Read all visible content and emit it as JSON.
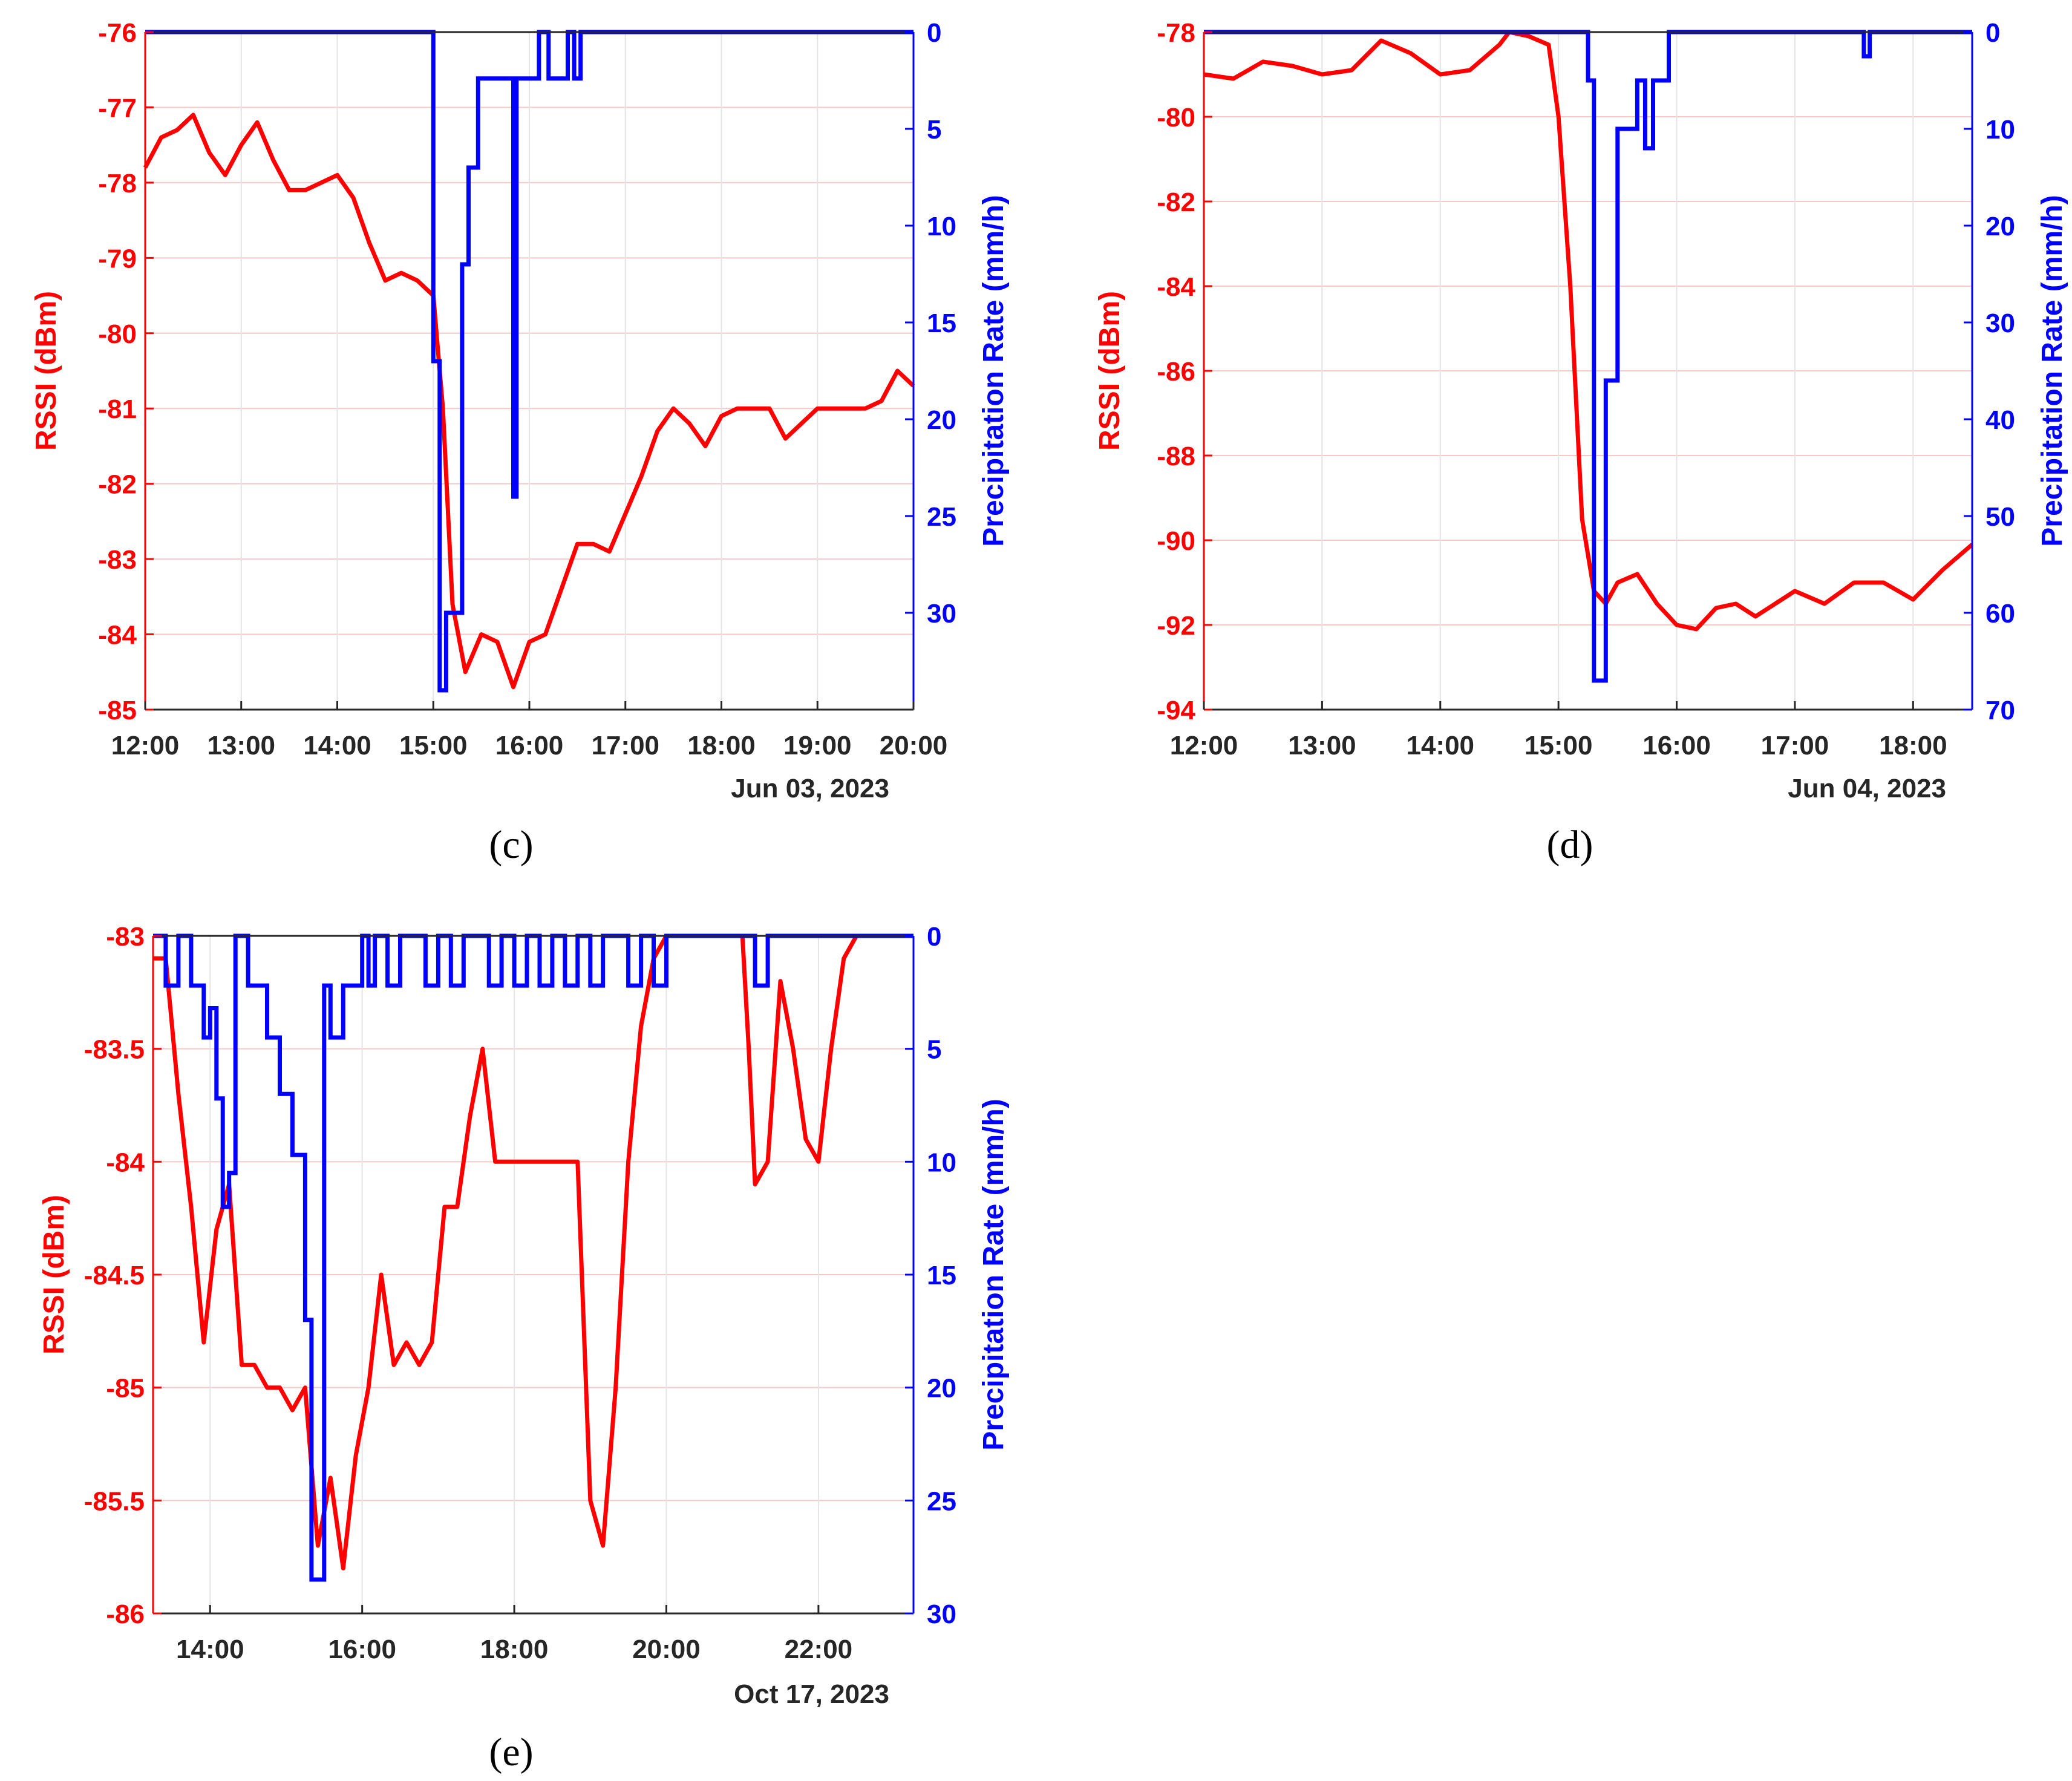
{
  "chart_data": [
    {
      "panel": "c",
      "caption": "(c)",
      "type": "line",
      "date_label": "Jun 03, 2023",
      "ylabel_left": "RSSI (dBm)",
      "ylabel_right": "Precipitation Rate (mm/h)",
      "xlim": [
        "12:00",
        "20:00"
      ],
      "xticks": [
        "12:00",
        "13:00",
        "14:00",
        "15:00",
        "16:00",
        "17:00",
        "18:00",
        "19:00",
        "20:00"
      ],
      "ylim_left": [
        -85,
        -76
      ],
      "yticks_left": [
        "-76",
        "-77",
        "-78",
        "-79",
        "-80",
        "-81",
        "-82",
        "-83",
        "-84",
        "-85"
      ],
      "ylim_right": [
        0,
        35
      ],
      "right_axis_reversed": true,
      "yticks_right": [
        "0",
        "5",
        "10",
        "15",
        "20",
        "25",
        "30"
      ],
      "grid": true,
      "series": [
        {
          "name": "RSSI",
          "axis": "left",
          "color": "#ff0000",
          "x": [
            "12:00",
            "12:10",
            "12:20",
            "12:30",
            "12:40",
            "12:50",
            "13:00",
            "13:10",
            "13:20",
            "13:30",
            "13:40",
            "13:50",
            "14:00",
            "14:10",
            "14:20",
            "14:30",
            "14:40",
            "14:50",
            "15:00",
            "15:06",
            "15:12",
            "15:20",
            "15:30",
            "15:40",
            "15:50",
            "16:00",
            "16:10",
            "16:20",
            "16:30",
            "16:40",
            "16:50",
            "17:00",
            "17:10",
            "17:20",
            "17:30",
            "17:40",
            "17:50",
            "18:00",
            "18:10",
            "18:20",
            "18:30",
            "18:40",
            "18:50",
            "19:00",
            "19:10",
            "19:20",
            "19:30",
            "19:40",
            "19:50",
            "20:00"
          ],
          "y": [
            -77.8,
            -77.4,
            -77.3,
            -77.1,
            -77.6,
            -77.9,
            -77.5,
            -77.2,
            -77.7,
            -78.1,
            -78.1,
            -78.0,
            -77.9,
            -78.2,
            -78.8,
            -79.3,
            -79.2,
            -79.3,
            -79.5,
            -81.0,
            -83.6,
            -84.5,
            -84.0,
            -84.1,
            -84.7,
            -84.1,
            -84.0,
            -83.4,
            -82.8,
            -82.8,
            -82.9,
            -82.4,
            -81.9,
            -81.3,
            -81.0,
            -81.2,
            -81.5,
            -81.1,
            -81.0,
            -81.0,
            -81.0,
            -81.4,
            -81.2,
            -81.0,
            -81.0,
            -81.0,
            -81.0,
            -80.9,
            -80.5,
            -80.7
          ]
        },
        {
          "name": "Precipitation Rate",
          "axis": "right",
          "color": "#0000ff",
          "step": true,
          "x": [
            "12:00",
            "15:00",
            "15:04",
            "15:06",
            "15:08",
            "15:14",
            "15:18",
            "15:22",
            "15:24",
            "15:28",
            "15:30",
            "15:35",
            "15:40",
            "15:48",
            "15:50",
            "15:52",
            "16:02",
            "16:06",
            "16:10",
            "16:12",
            "16:18",
            "16:24",
            "16:28",
            "16:32",
            "16:38",
            "16:40",
            "20:00"
          ],
          "y": [
            0,
            17,
            34,
            34,
            30,
            30,
            12,
            7,
            7,
            2.4,
            2.4,
            2.4,
            2.4,
            2.4,
            24,
            2.4,
            2.4,
            0,
            0,
            2.4,
            2.4,
            0,
            2.4,
            0,
            0,
            0,
            0
          ]
        }
      ]
    },
    {
      "panel": "d",
      "caption": "(d)",
      "type": "line",
      "date_label": "Jun 04, 2023",
      "ylabel_left": "RSSI (dBm)",
      "ylabel_right": "Precipitation Rate (mm/h)",
      "xlim": [
        "12:00",
        "18:30"
      ],
      "xticks": [
        "12:00",
        "13:00",
        "14:00",
        "15:00",
        "16:00",
        "17:00",
        "18:00"
      ],
      "ylim_left": [
        -94,
        -78
      ],
      "yticks_left": [
        "-78",
        "-80",
        "-82",
        "-84",
        "-86",
        "-88",
        "-90",
        "-92",
        "-94"
      ],
      "ylim_right": [
        0,
        70
      ],
      "right_axis_reversed": true,
      "yticks_right": [
        "0",
        "10",
        "20",
        "30",
        "40",
        "50",
        "60",
        "70"
      ],
      "grid": true,
      "series": [
        {
          "name": "RSSI",
          "axis": "left",
          "color": "#ff0000",
          "x": [
            "12:00",
            "12:15",
            "12:30",
            "12:45",
            "13:00",
            "13:15",
            "13:30",
            "13:45",
            "14:00",
            "14:15",
            "14:30",
            "14:35",
            "14:45",
            "14:55",
            "15:00",
            "15:06",
            "15:12",
            "15:18",
            "15:24",
            "15:30",
            "15:40",
            "15:50",
            "16:00",
            "16:10",
            "16:20",
            "16:30",
            "16:40",
            "16:50",
            "17:00",
            "17:15",
            "17:30",
            "17:45",
            "18:00",
            "18:15",
            "18:30"
          ],
          "y": [
            -79.0,
            -79.1,
            -78.7,
            -78.8,
            -79.0,
            -78.9,
            -78.2,
            -78.5,
            -79.0,
            -78.9,
            -78.3,
            -78.0,
            -78.1,
            -78.3,
            -80.0,
            -84.0,
            -89.5,
            -91.2,
            -91.5,
            -91.0,
            -90.8,
            -91.5,
            -92.0,
            -92.1,
            -91.6,
            -91.5,
            -91.8,
            -91.5,
            -91.2,
            -91.5,
            -91.0,
            -91.0,
            -91.4,
            -90.7,
            -90.1
          ]
        },
        {
          "name": "Precipitation Rate",
          "axis": "right",
          "color": "#0000ff",
          "step": true,
          "x": [
            "12:00",
            "15:15",
            "15:18",
            "15:24",
            "15:30",
            "15:36",
            "15:40",
            "15:44",
            "15:48",
            "15:52",
            "15:56",
            "16:00",
            "17:35",
            "17:38",
            "17:40",
            "18:30"
          ],
          "y": [
            0,
            5,
            67,
            36,
            10,
            10,
            5,
            12,
            5,
            5,
            0,
            0,
            2.5,
            0,
            0,
            0
          ]
        }
      ]
    },
    {
      "panel": "e",
      "caption": "(e)",
      "type": "line",
      "date_label": "Oct 17, 2023",
      "ylabel_left": "RSSI (dBm)",
      "ylabel_right": "Precipitation Rate (mm/h)",
      "xlim": [
        "13:15",
        "23:15"
      ],
      "xticks": [
        "14:00",
        "16:00",
        "18:00",
        "20:00",
        "22:00"
      ],
      "ylim_left": [
        -86,
        -83
      ],
      "yticks_left": [
        "-83",
        "-83.5",
        "-84",
        "-84.5",
        "-85",
        "-85.5",
        "-86"
      ],
      "ylim_right": [
        0,
        30
      ],
      "right_axis_reversed": true,
      "yticks_right": [
        "0",
        "5",
        "10",
        "15",
        "20",
        "25",
        "30"
      ],
      "grid": true,
      "series": [
        {
          "name": "RSSI",
          "axis": "left",
          "color": "#ff0000",
          "x": [
            "13:15",
            "13:25",
            "13:35",
            "13:45",
            "13:55",
            "14:05",
            "14:15",
            "14:25",
            "14:35",
            "14:45",
            "14:55",
            "15:05",
            "15:15",
            "15:25",
            "15:35",
            "15:45",
            "15:55",
            "16:05",
            "16:15",
            "16:25",
            "16:35",
            "16:45",
            "16:55",
            "17:05",
            "17:15",
            "17:25",
            "17:35",
            "17:45",
            "17:55",
            "18:30",
            "18:50",
            "19:00",
            "19:10",
            "19:20",
            "19:30",
            "19:40",
            "19:50",
            "20:00",
            "20:30",
            "21:00",
            "21:05",
            "21:10",
            "21:20",
            "21:30",
            "21:40",
            "21:50",
            "22:00",
            "22:10",
            "22:20",
            "22:30",
            "23:15"
          ],
          "y": [
            -83.1,
            -83.1,
            -83.7,
            -84.2,
            -84.8,
            -84.3,
            -84.1,
            -84.9,
            -84.9,
            -85.0,
            -85.0,
            -85.1,
            -85.0,
            -85.7,
            -85.4,
            -85.8,
            -85.3,
            -85.0,
            -84.5,
            -84.9,
            -84.8,
            -84.9,
            -84.8,
            -84.2,
            -84.2,
            -83.8,
            -83.5,
            -84.0,
            -84.0,
            -84.0,
            -84.0,
            -85.5,
            -85.7,
            -85.0,
            -84.0,
            -83.4,
            -83.1,
            -83.0,
            -83.0,
            -83.0,
            -83.5,
            -84.1,
            -84.0,
            -83.2,
            -83.5,
            -83.9,
            -84.0,
            -83.5,
            -83.1,
            -83.0,
            -83.0
          ]
        },
        {
          "name": "Precipitation Rate",
          "axis": "right",
          "color": "#0000ff",
          "step": true,
          "x": [
            "13:15",
            "13:25",
            "13:35",
            "13:45",
            "13:55",
            "14:00",
            "14:05",
            "14:10",
            "14:15",
            "14:20",
            "14:25",
            "14:30",
            "14:35",
            "14:45",
            "14:55",
            "15:05",
            "15:10",
            "15:15",
            "15:20",
            "15:30",
            "15:35",
            "15:40",
            "15:45",
            "16:00",
            "16:05",
            "16:10",
            "16:20",
            "16:30",
            "16:40",
            "16:50",
            "17:00",
            "17:10",
            "17:20",
            "17:30",
            "17:40",
            "17:50",
            "18:00",
            "18:10",
            "18:20",
            "18:30",
            "18:40",
            "18:50",
            "19:00",
            "19:10",
            "19:20",
            "19:30",
            "19:40",
            "19:50",
            "20:00",
            "20:10",
            "20:20",
            "20:30",
            "21:00",
            "21:10",
            "21:20",
            "21:30",
            "23:15"
          ],
          "y": [
            0,
            2.2,
            0,
            2.2,
            4.5,
            3.2,
            7.2,
            12,
            10.5,
            0,
            0,
            2.2,
            2.2,
            4.5,
            7,
            9.7,
            9.7,
            17,
            28.5,
            2.2,
            4.5,
            4.5,
            2.2,
            0,
            2.2,
            0,
            2.2,
            0,
            0,
            2.2,
            0,
            2.2,
            0,
            0,
            2.2,
            0,
            2.2,
            0,
            2.2,
            0,
            2.2,
            0,
            2.2,
            0,
            0,
            2.2,
            0,
            2.2,
            0,
            0,
            0,
            0,
            0,
            2.2,
            0,
            0,
            0
          ]
        }
      ]
    }
  ]
}
